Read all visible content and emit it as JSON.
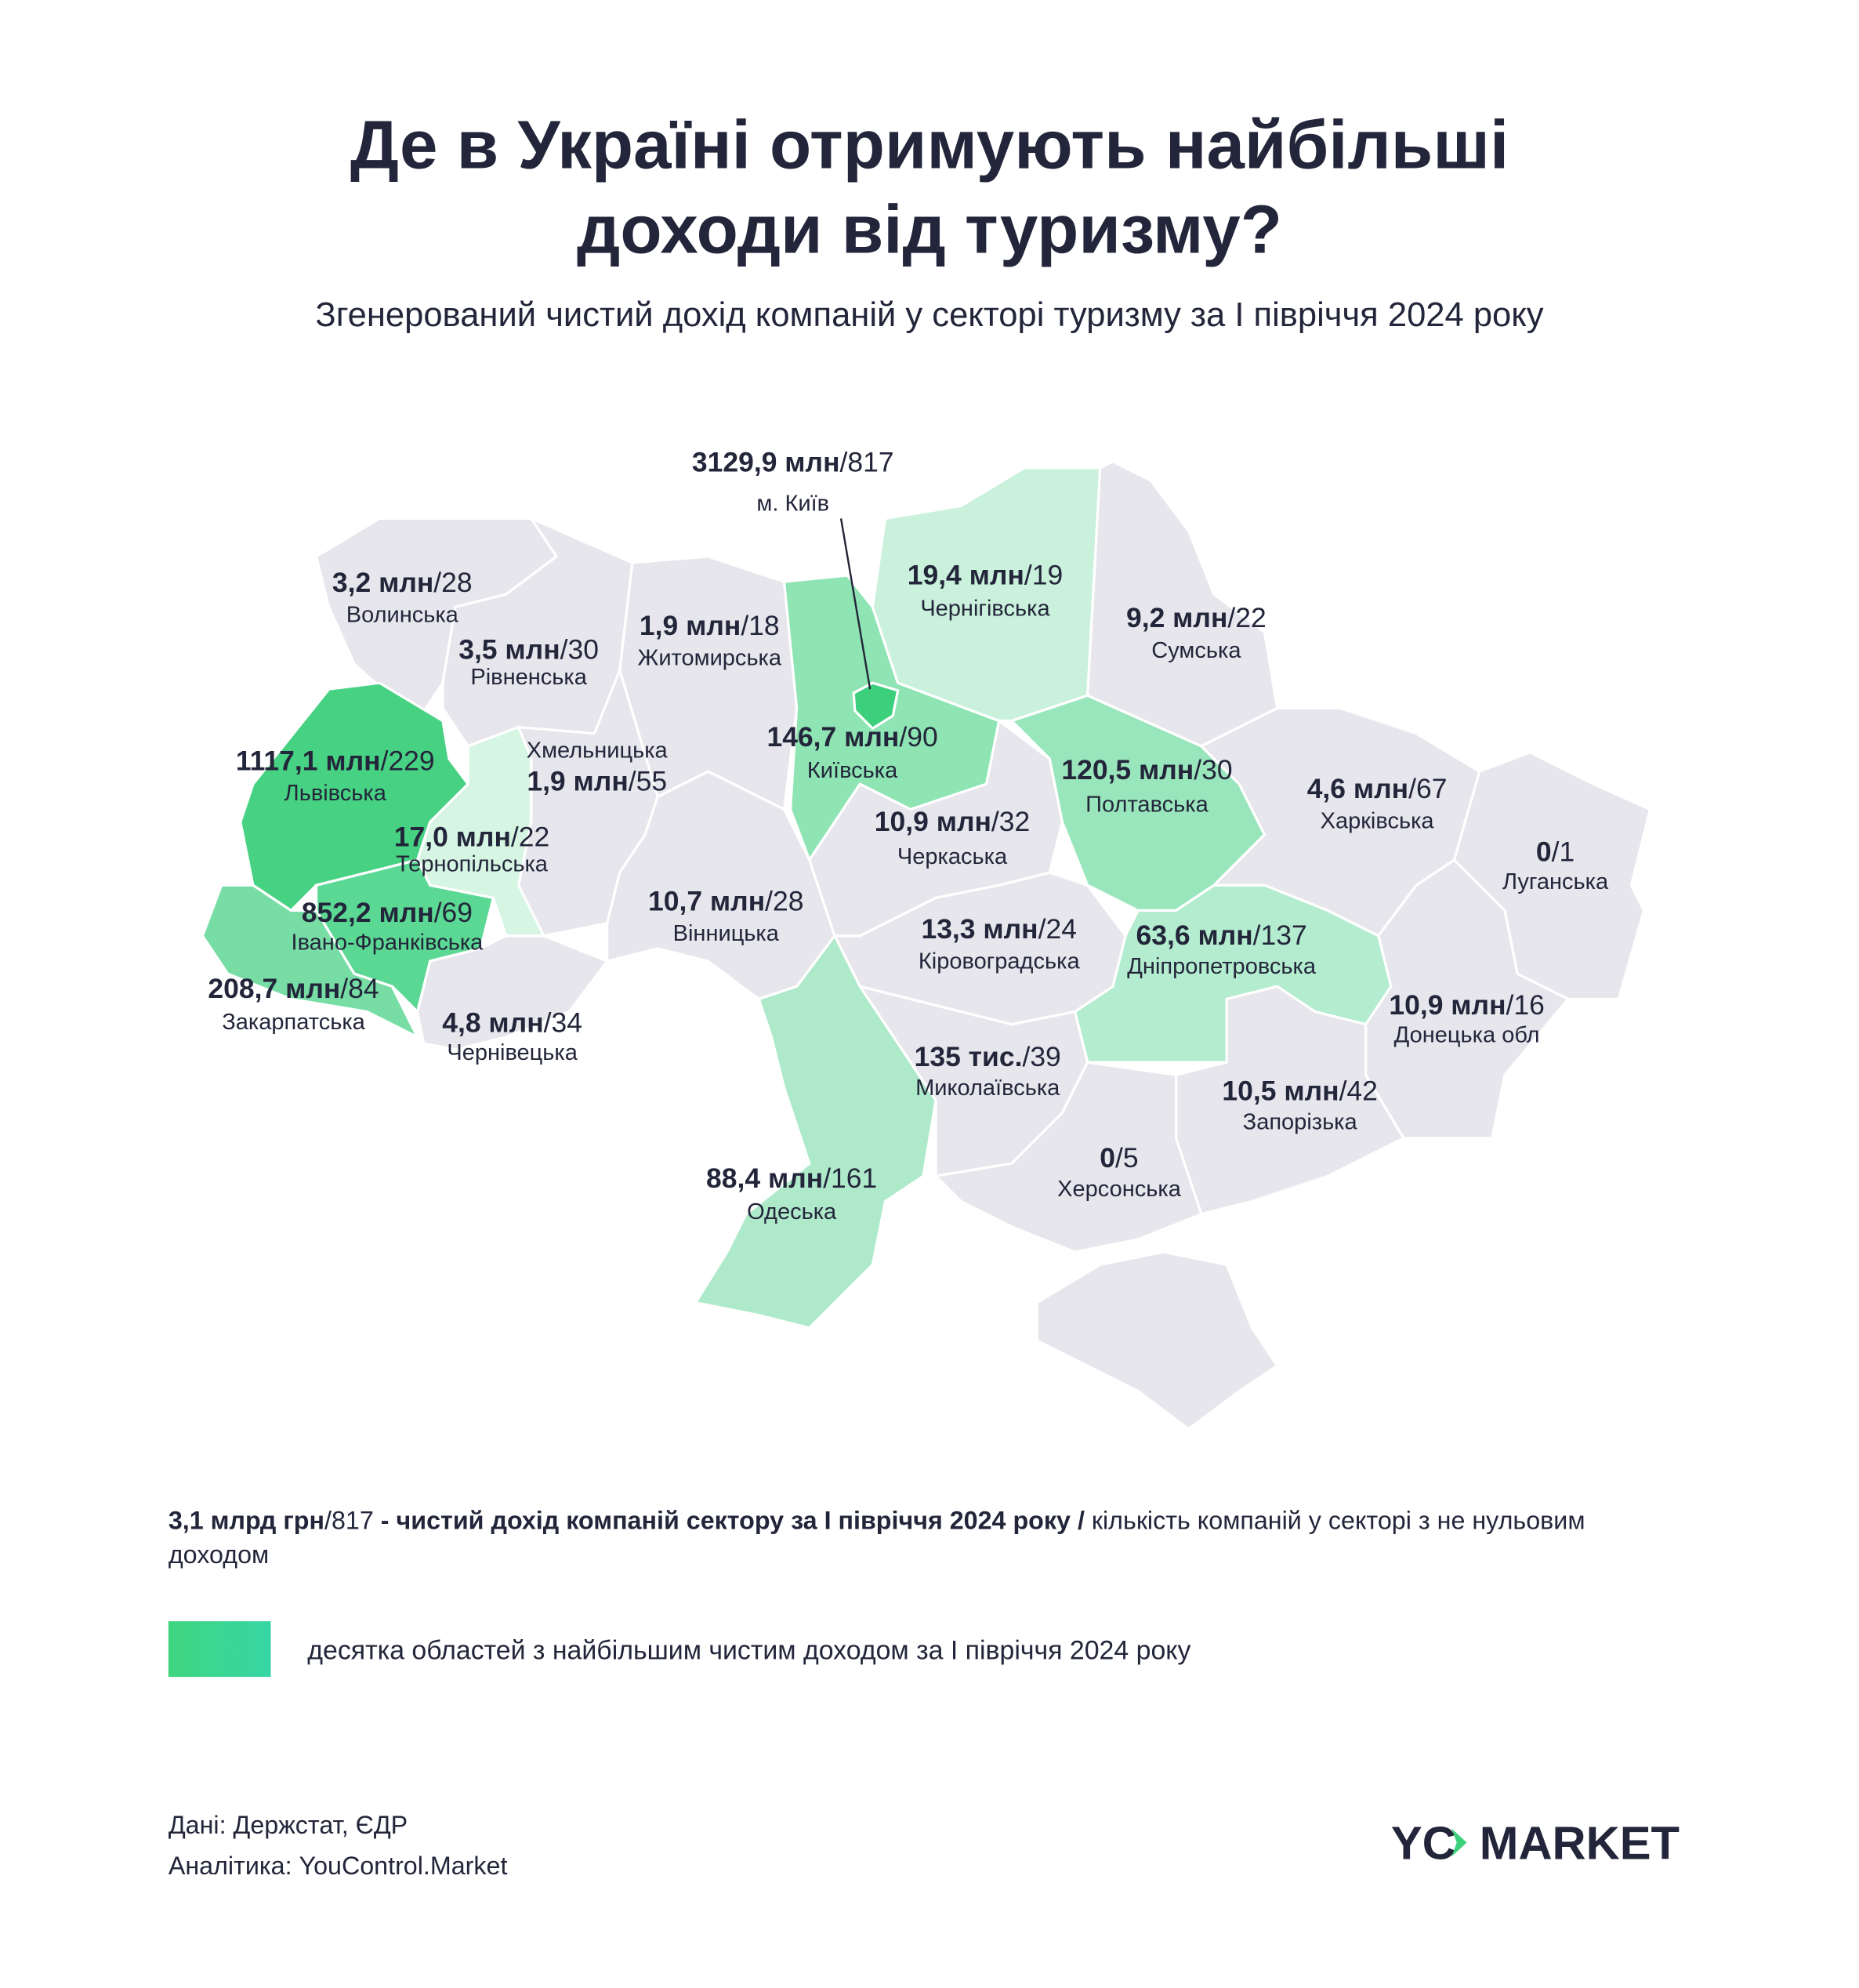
{
  "header": {
    "title": [
      "Де в Україні отримують найбільші",
      "доходи від туризму?"
    ],
    "subtitle": "Згенерований чистий дохід компаній у секторі туризму за I півріччя 2024 року"
  },
  "separator": "/",
  "regions": [
    {
      "name": "Волинська",
      "amount": "3,2 млн",
      "count": 28,
      "color": "#e6e6ec"
    },
    {
      "name": "Рівненська",
      "amount": "3,5 млн",
      "count": 30,
      "color": "#e6e6ec"
    },
    {
      "name": "Житомирська",
      "amount": "1,9 млн",
      "count": 18,
      "color": "#e6e6ec"
    },
    {
      "name": "Київська",
      "amount": "146,7 млн",
      "count": 90,
      "color": "#8ee4b3"
    },
    {
      "name": "Чернігівська",
      "amount": "19,4 млн",
      "count": 19,
      "color": "#c9f1db"
    },
    {
      "name": "Сумська",
      "amount": "9,2 млн",
      "count": 22,
      "color": "#e6e6ec"
    },
    {
      "name": "Львівська",
      "amount": "1117,1 млн",
      "count": 229,
      "color": "#47d283"
    },
    {
      "name": "Тернопільська",
      "amount": "17,0 млн",
      "count": 22,
      "color": "#d6f5e3"
    },
    {
      "name": "Хмельницька",
      "amount": "1,9 млн",
      "count": 55,
      "color": "#e6e6ec"
    },
    {
      "name": "Івано-Франківська",
      "amount": "852,2 млн",
      "count": 69,
      "color": "#5bd893"
    },
    {
      "name": "Закарпатська",
      "amount": "208,7 млн",
      "count": 84,
      "color": "#77dda5"
    },
    {
      "name": "Чернівецька",
      "amount": "4,8 млн",
      "count": 34,
      "color": "#e6e6ec"
    },
    {
      "name": "Вінницька",
      "amount": "10,7 млн",
      "count": 28,
      "color": "#e6e6ec"
    },
    {
      "name": "Черкаська",
      "amount": "10,9 млн",
      "count": 32,
      "color": "#e6e6ec"
    },
    {
      "name": "Полтавська",
      "amount": "120,5 млн",
      "count": 30,
      "color": "#9ae6bc"
    },
    {
      "name": "Харківська",
      "amount": "4,6 млн",
      "count": 67,
      "color": "#e6e6ec"
    },
    {
      "name": "Луганська",
      "amount": "0",
      "count": 1,
      "color": "#e6e6ec"
    },
    {
      "name": "Донецька обл",
      "amount": "10,9 млн",
      "count": 16,
      "color": "#e6e6ec"
    },
    {
      "name": "Дніпропетровська",
      "amount": "63,6 млн",
      "count": 137,
      "color": "#b3ecce"
    },
    {
      "name": "Кіровоградська",
      "amount": "13,3 млн",
      "count": 24,
      "color": "#e6e6ec"
    },
    {
      "name": "Одеська",
      "amount": "88,4 млн",
      "count": 161,
      "color": "#aee9ca"
    },
    {
      "name": "Миколаївська",
      "amount": "135 тис.",
      "count": 39,
      "color": "#e6e6ec"
    },
    {
      "name": "Запорізька",
      "amount": "10,5 млн",
      "count": 42,
      "color": "#e6e6ec"
    },
    {
      "name": "Херсонська",
      "amount": "0",
      "count": 5,
      "color": "#e6e6ec"
    },
    {
      "name": "м. Київ",
      "amount": "3129,9 млн",
      "count": 817,
      "color": "#3ccf7c"
    }
  ],
  "crimea_color": "#e6e6ec",
  "note": {
    "total": "3,1 млрд грн",
    "count": 817,
    "bold_text": "- чистий дохід компаній сектору за I півріччя 2024 року /",
    "text": "кількість компаній у секторі з не нульовим доходом"
  },
  "legend": {
    "label": "десятка областей з найбільшим чистим доходом за I півріччя 2024 року",
    "colors": [
      "#3fd67f",
      "#36d5a5"
    ]
  },
  "footer": {
    "source": "Дані: Держстат, ЄДР",
    "analytics": "Аналітика: YouControl.Market"
  },
  "logo": {
    "left": "YC",
    "right": "MARKET",
    "accent": "#3ccf7c"
  }
}
